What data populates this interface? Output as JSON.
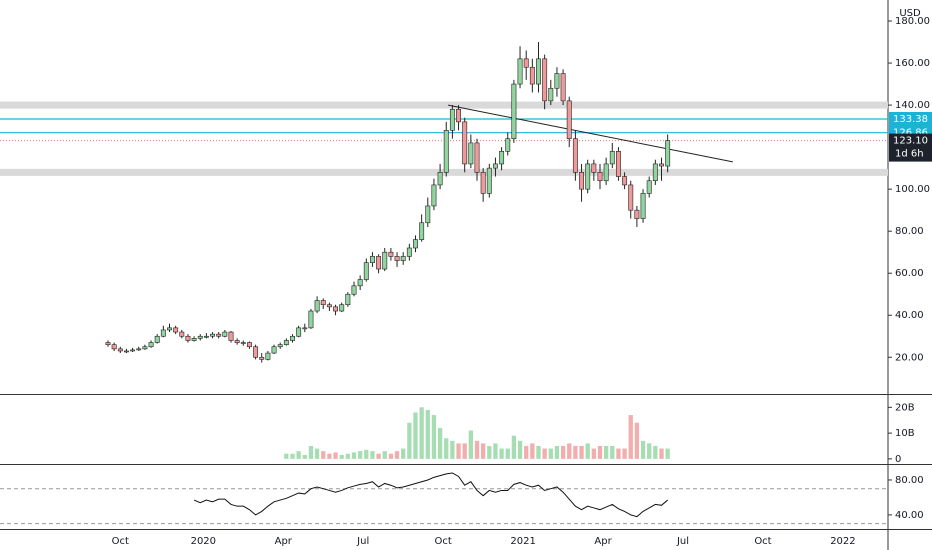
{
  "chart_data": {
    "type": "candlestick",
    "currency": "USD",
    "up_color": "#91d4a0",
    "down_color": "#ef9a9a",
    "candles": [
      [
        0,
        27,
        28,
        25,
        26
      ],
      [
        1,
        26,
        27,
        23,
        24
      ],
      [
        2,
        24,
        25,
        22,
        23
      ],
      [
        3,
        23,
        24,
        22,
        23
      ],
      [
        4,
        23,
        24.5,
        22.5,
        23.5
      ],
      [
        5,
        23.5,
        25,
        23,
        24
      ],
      [
        6,
        24,
        26,
        23.5,
        25
      ],
      [
        7,
        25,
        28,
        24.5,
        27
      ],
      [
        8,
        27,
        31,
        26.5,
        30
      ],
      [
        9,
        30,
        35,
        29.5,
        33
      ],
      [
        10,
        33,
        36,
        32,
        34
      ],
      [
        11,
        34,
        35,
        31,
        32
      ],
      [
        12,
        32,
        33,
        29,
        30
      ],
      [
        13,
        30,
        31,
        27,
        28
      ],
      [
        14,
        28,
        30,
        27.5,
        29
      ],
      [
        15,
        29,
        31,
        28,
        30
      ],
      [
        16,
        30,
        31.5,
        29,
        30
      ],
      [
        17,
        30,
        32,
        29,
        31
      ],
      [
        18,
        31,
        32,
        29,
        30
      ],
      [
        19,
        30,
        33,
        29.5,
        32
      ],
      [
        20,
        32,
        32.5,
        27,
        28
      ],
      [
        21,
        28,
        29,
        26,
        27
      ],
      [
        22,
        27,
        28,
        25.5,
        27
      ],
      [
        23,
        27,
        27.5,
        24,
        25
      ],
      [
        24,
        25,
        26,
        19,
        20
      ],
      [
        25,
        20,
        22,
        17.5,
        19
      ],
      [
        26,
        19,
        23,
        18.5,
        22
      ],
      [
        27,
        22,
        26,
        21.5,
        25
      ],
      [
        28,
        25,
        27,
        24,
        26
      ],
      [
        29,
        26,
        29,
        25.5,
        28
      ],
      [
        30,
        28,
        31,
        27,
        30
      ],
      [
        31,
        30,
        35,
        29.5,
        34
      ],
      [
        32,
        34,
        36,
        32,
        34
      ],
      [
        33,
        34,
        43,
        33.5,
        42
      ],
      [
        34,
        42,
        49,
        41,
        47
      ],
      [
        35,
        47,
        48,
        43,
        45
      ],
      [
        36,
        45,
        46,
        42,
        44
      ],
      [
        37,
        44,
        45,
        40,
        42
      ],
      [
        38,
        42,
        46,
        41.5,
        45
      ],
      [
        39,
        45,
        51,
        44,
        50
      ],
      [
        40,
        50,
        56,
        49,
        54
      ],
      [
        41,
        54,
        59,
        52,
        57
      ],
      [
        42,
        57,
        67,
        56,
        65
      ],
      [
        43,
        65,
        70,
        63,
        68
      ],
      [
        44,
        68,
        69,
        60,
        62
      ],
      [
        45,
        62,
        72,
        61,
        70
      ],
      [
        46,
        70,
        72,
        66,
        68
      ],
      [
        47,
        68,
        70,
        63,
        66
      ],
      [
        48,
        66,
        70,
        64,
        68
      ],
      [
        49,
        68,
        74,
        66,
        72
      ],
      [
        50,
        72,
        78,
        70,
        76
      ],
      [
        51,
        76,
        88,
        75,
        84
      ],
      [
        52,
        84,
        96,
        82,
        92
      ],
      [
        53,
        92,
        105,
        90,
        102
      ],
      [
        54,
        102,
        112,
        100,
        108
      ],
      [
        55,
        108,
        132,
        106,
        128
      ],
      [
        56,
        128,
        140,
        124,
        138
      ],
      [
        57,
        138,
        140,
        128,
        132
      ],
      [
        58,
        132,
        134,
        108,
        112
      ],
      [
        59,
        112,
        126,
        110,
        122
      ],
      [
        60,
        122,
        124,
        104,
        108
      ],
      [
        61,
        108,
        110,
        94,
        98
      ],
      [
        62,
        98,
        112,
        96,
        110
      ],
      [
        63,
        110,
        115,
        106,
        112
      ],
      [
        64,
        112,
        120,
        109,
        118
      ],
      [
        65,
        118,
        127,
        116,
        124
      ],
      [
        66,
        124,
        152,
        122,
        150
      ],
      [
        67,
        150,
        168,
        148,
        162
      ],
      [
        68,
        162,
        166,
        152,
        158
      ],
      [
        69,
        158,
        162,
        146,
        150
      ],
      [
        70,
        150,
        170,
        146,
        162
      ],
      [
        71,
        162,
        164,
        138,
        142
      ],
      [
        72,
        142,
        152,
        140,
        148
      ],
      [
        73,
        148,
        158,
        144,
        155
      ],
      [
        74,
        155,
        157,
        140,
        142
      ],
      [
        75,
        142,
        144,
        120,
        124
      ],
      [
        76,
        124,
        128,
        104,
        108
      ],
      [
        77,
        108,
        112,
        94,
        100
      ],
      [
        78,
        100,
        114,
        98,
        112
      ],
      [
        79,
        112,
        114,
        104,
        108
      ],
      [
        80,
        108,
        112,
        100,
        104
      ],
      [
        81,
        104,
        115,
        102,
        112
      ],
      [
        82,
        112,
        122,
        110,
        118
      ],
      [
        83,
        118,
        120,
        104,
        106
      ],
      [
        84,
        106,
        108,
        100,
        102
      ],
      [
        85,
        102,
        104,
        86,
        90
      ],
      [
        86,
        90,
        92,
        82,
        86
      ],
      [
        87,
        86,
        100,
        84,
        98
      ],
      [
        88,
        98,
        106,
        96,
        104
      ],
      [
        89,
        104,
        114,
        102,
        112
      ],
      [
        90,
        112,
        115,
        104,
        111
      ],
      [
        91,
        111,
        126,
        108,
        123.1
      ]
    ],
    "xlim": [
      -17.56,
      126.83
    ],
    "xticks": [
      {
        "value": 2,
        "label": "Oct"
      },
      {
        "value": 15.5,
        "label": "2020"
      },
      {
        "value": 28.5,
        "label": "Apr"
      },
      {
        "value": 41.5,
        "label": "Jul"
      },
      {
        "value": 54.5,
        "label": "Oct"
      },
      {
        "value": 67.5,
        "label": "2021"
      },
      {
        "value": 80.5,
        "label": "Apr"
      },
      {
        "value": 93.5,
        "label": "Jul"
      },
      {
        "value": 106.5,
        "label": "Oct"
      },
      {
        "value": 119.5,
        "label": "2022"
      }
    ],
    "ylim": [
      3,
      190
    ],
    "yticks": [
      {
        "value": 20,
        "label": "20.00"
      },
      {
        "value": 40,
        "label": "40.00"
      },
      {
        "value": 60,
        "label": "60.00"
      },
      {
        "value": 80,
        "label": "80.00"
      },
      {
        "value": 100,
        "label": "100.00"
      },
      {
        "value": 140,
        "label": "140.00"
      },
      {
        "value": 160,
        "label": "160.00"
      },
      {
        "value": 180,
        "label": "180.00"
      }
    ],
    "zones": [
      140,
      108
    ],
    "zone_color": "#d9d9d9",
    "levels": [
      133.38,
      126.86
    ],
    "level_color": "#1cb3d6",
    "last_price": {
      "value": 123.1,
      "label": "123.10"
    },
    "countdown": "1d 6h",
    "trendline": {
      "x": [
        55.3,
        101.6
      ],
      "y": [
        140,
        113
      ]
    },
    "volume": {
      "values": [
        null,
        null,
        null,
        null,
        null,
        null,
        null,
        null,
        null,
        null,
        null,
        null,
        null,
        null,
        null,
        null,
        null,
        null,
        null,
        null,
        null,
        null,
        null,
        null,
        null,
        null,
        null,
        null,
        null,
        2,
        2,
        3,
        1.5,
        5,
        4,
        3,
        2,
        2.5,
        1.5,
        2,
        2.5,
        3,
        3.5,
        3,
        2,
        3,
        2,
        3,
        4,
        14,
        18,
        20,
        19,
        17,
        12,
        8,
        7,
        6,
        6,
        11,
        7,
        6,
        5,
        6,
        4,
        4,
        9,
        7,
        5,
        6,
        5,
        4,
        4,
        5,
        5,
        6,
        5,
        5,
        6,
        4,
        5,
        5,
        5,
        4,
        4,
        17,
        14,
        7,
        6,
        5,
        4,
        4
      ],
      "ylim": [
        -1.6,
        24.4
      ],
      "yticks": [
        0,
        {
          "value": 10,
          "label": "10B"
        },
        {
          "value": 20,
          "label": "20B"
        }
      ]
    },
    "rsi": {
      "values": [
        null,
        null,
        null,
        null,
        null,
        null,
        null,
        null,
        null,
        null,
        null,
        null,
        null,
        null,
        57,
        54,
        57,
        55,
        58,
        58,
        52,
        50,
        50,
        46,
        40,
        44,
        50,
        55,
        57,
        59,
        62,
        65,
        64,
        70,
        72,
        70,
        68,
        66,
        68,
        71,
        73,
        75,
        76,
        78,
        72,
        76,
        74,
        71,
        72,
        74,
        76,
        78,
        80,
        83,
        85,
        87,
        88,
        84,
        74,
        78,
        68,
        62,
        68,
        66,
        68,
        68,
        75,
        77,
        74,
        72,
        74,
        68,
        70,
        72,
        66,
        58,
        50,
        46,
        50,
        48,
        46,
        49,
        52,
        47,
        44,
        40,
        38,
        44,
        48,
        52,
        51,
        57
      ],
      "ylim": [
        25,
        96
      ],
      "yticks": [
        {
          "value": 40,
          "label": "40.00"
        },
        {
          "value": 80,
          "label": "80.00"
        }
      ],
      "bands": [
        70,
        30
      ]
    }
  }
}
